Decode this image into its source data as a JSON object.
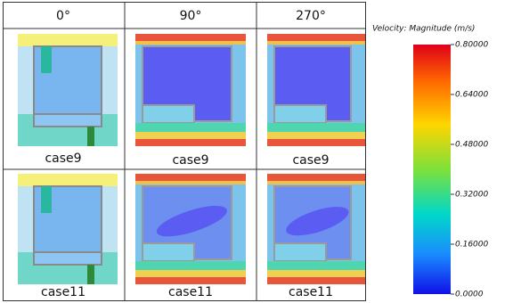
{
  "table": {
    "headers": [
      "0°",
      "90°",
      "270°"
    ],
    "rows": [
      [
        "case9",
        "case9",
        "case9"
      ],
      [
        "case11",
        "case11",
        "case11"
      ]
    ]
  },
  "colorbar": {
    "title": "Velocity: Magnitude (m/s)",
    "labels": [
      "0.80000",
      "0.64000",
      "0.48000",
      "0.32000",
      "0.16000",
      "0.0000"
    ]
  }
}
